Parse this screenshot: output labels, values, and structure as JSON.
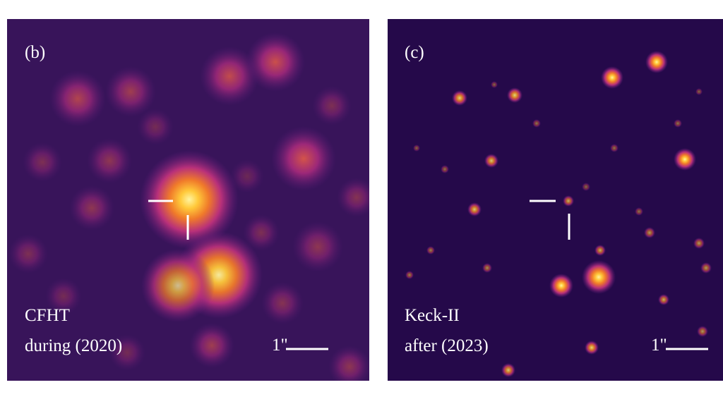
{
  "panels": [
    {
      "label": "(b)",
      "telescope": "CFHT",
      "epoch": "during (2020)",
      "scale": "1\""
    },
    {
      "label": "(c)",
      "telescope": "Keck-II",
      "epoch": "after (2023)",
      "scale": "1\""
    }
  ]
}
